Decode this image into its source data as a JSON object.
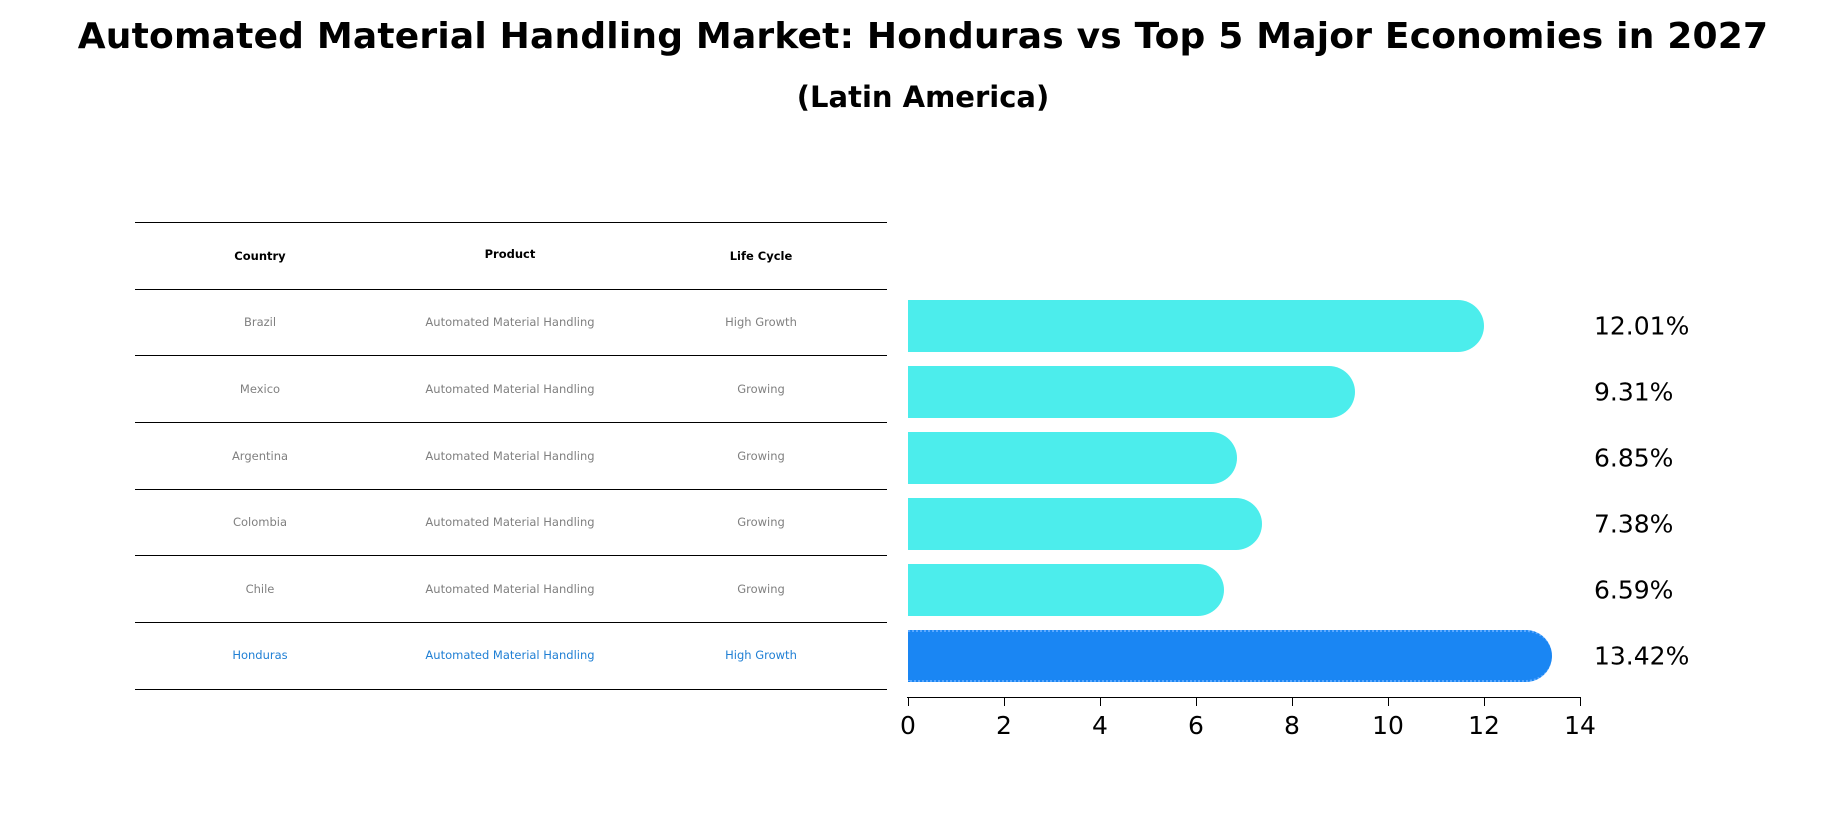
{
  "title": "Automated Material Handling Market: Honduras vs Top 5 Major Economies in 2027",
  "subtitle": "(Latin America)",
  "table": {
    "headers": [
      "Country",
      "Product",
      "Life Cycle"
    ],
    "rows": [
      [
        "Brazil",
        "Automated Material Handling",
        "High Growth"
      ],
      [
        "Mexico",
        "Automated Material Handling",
        "Growing"
      ],
      [
        "Argentina",
        "Automated Material Handling",
        "Growing"
      ],
      [
        "Colombia",
        "Automated Material Handling",
        "Growing"
      ],
      [
        "Chile",
        "Automated Material Handling",
        "Growing"
      ],
      [
        "Honduras",
        "Automated Material Handling",
        "High Growth"
      ]
    ]
  },
  "colors": {
    "bar": "#4cedec",
    "highlight_bar": "#1a86f3",
    "highlight_text": "#1f7fd4",
    "muted_text": "#808080"
  },
  "chart_data": {
    "type": "bar",
    "orientation": "horizontal",
    "title": "Automated Material Handling Market: Honduras vs Top 5 Major Economies in 2027",
    "subtitle": "(Latin America)",
    "categories": [
      "Brazil",
      "Mexico",
      "Argentina",
      "Colombia",
      "Chile",
      "Honduras"
    ],
    "values": [
      12.01,
      9.31,
      6.85,
      7.38,
      6.59,
      13.42
    ],
    "value_labels": [
      "12.01%",
      "9.31%",
      "6.85%",
      "7.38%",
      "6.59%",
      "13.42%"
    ],
    "highlight": "Honduras",
    "xlabel": "",
    "ylabel": "",
    "xlim": [
      0,
      14
    ],
    "xticks": [
      "0",
      "2",
      "4",
      "6",
      "8",
      "10",
      "12",
      "14"
    ],
    "grid": false,
    "legend": null
  }
}
